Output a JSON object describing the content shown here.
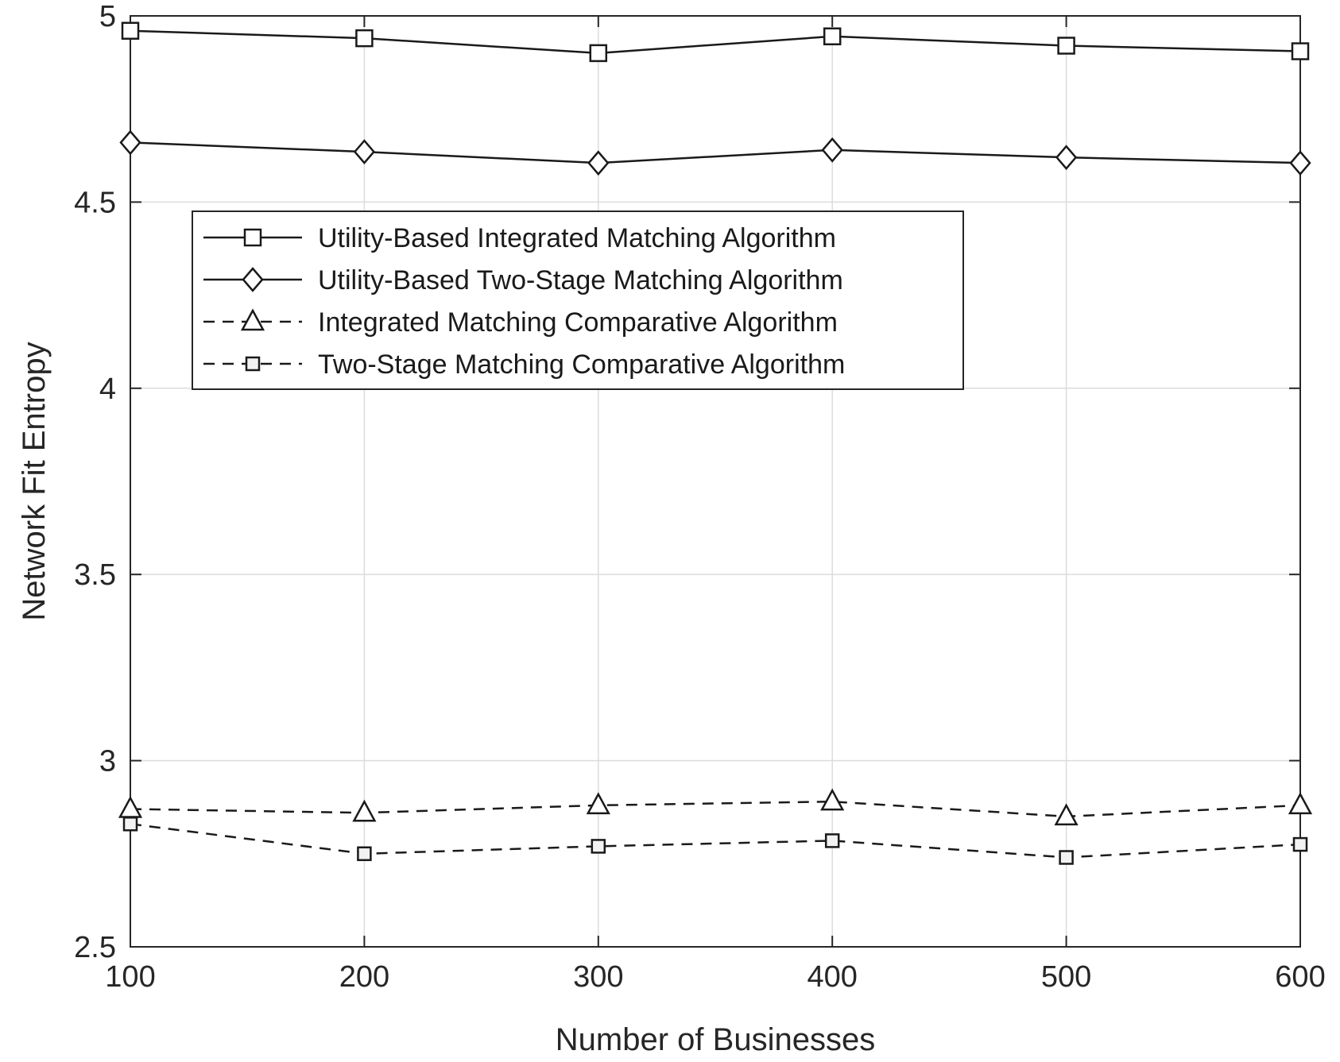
{
  "chart_data": {
    "type": "line",
    "title": "",
    "xlabel": "Number of Businesses",
    "ylabel": "Network Fit Entropy",
    "x": [
      100,
      200,
      300,
      400,
      500,
      600
    ],
    "xlim": [
      100,
      600
    ],
    "ylim": [
      2.5,
      5
    ],
    "xticks": [
      "100",
      "200",
      "300",
      "400",
      "500",
      "600"
    ],
    "yticks": [
      "2.5",
      "3",
      "3.5",
      "4",
      "4.5",
      "5"
    ],
    "ytick_values": [
      2.5,
      3,
      3.5,
      4,
      4.5,
      5
    ],
    "grid": true,
    "legend_position": "upper-left",
    "series": [
      {
        "name": "Utility-Based Integrated Matching Algorithm",
        "values": [
          4.96,
          4.94,
          4.9,
          4.945,
          4.92,
          4.905
        ],
        "line": "solid",
        "marker": "square",
        "color": "#1a1a1a"
      },
      {
        "name": "Utility-Based Two-Stage Matching Algorithm",
        "values": [
          4.66,
          4.635,
          4.605,
          4.64,
          4.62,
          4.605
        ],
        "line": "solid",
        "marker": "diamond",
        "color": "#1a1a1a"
      },
      {
        "name": "Integrated Matching Comparative Algorithm",
        "values": [
          2.87,
          2.86,
          2.88,
          2.89,
          2.85,
          2.88
        ],
        "line": "dashed",
        "marker": "triangle",
        "color": "#1a1a1a"
      },
      {
        "name": "Two-Stage Matching Comparative Algorithm",
        "values": [
          2.83,
          2.75,
          2.77,
          2.785,
          2.74,
          2.775
        ],
        "line": "dashed",
        "marker": "small-square",
        "color": "#1a1a1a"
      }
    ]
  }
}
